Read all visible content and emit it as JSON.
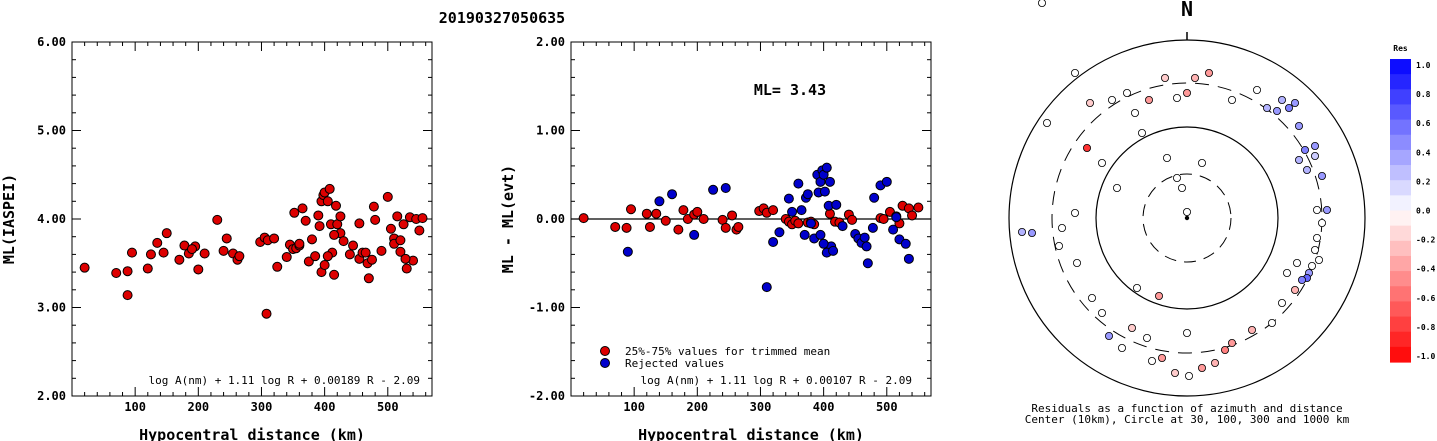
{
  "title": "20190327050635",
  "chart_data": [
    {
      "type": "scatter",
      "name": "ml_vs_distance",
      "xlabel": "Hypocentral distance (km)",
      "ylabel": "ML(IASPEI)",
      "xlim": [
        0,
        570
      ],
      "ylim": [
        2.0,
        6.0
      ],
      "xticks": [
        100,
        200,
        300,
        400,
        500
      ],
      "yticks": [
        "2.00",
        "3.00",
        "4.00",
        "5.00",
        "6.00"
      ],
      "formula": "log A(nm) + 1.11 log R + 0.00189 R - 2.09",
      "marker_color": "#dd0000",
      "points": [
        [
          20,
          3.45
        ],
        [
          70,
          3.39
        ],
        [
          88,
          3.41
        ],
        [
          88,
          3.14
        ],
        [
          95,
          3.62
        ],
        [
          120,
          3.44
        ],
        [
          125,
          3.6
        ],
        [
          135,
          3.73
        ],
        [
          150,
          3.84
        ],
        [
          145,
          3.62
        ],
        [
          170,
          3.54
        ],
        [
          178,
          3.7
        ],
        [
          185,
          3.61
        ],
        [
          195,
          3.69
        ],
        [
          200,
          3.43
        ],
        [
          190,
          3.66
        ],
        [
          210,
          3.61
        ],
        [
          230,
          3.99
        ],
        [
          240,
          3.64
        ],
        [
          245,
          3.78
        ],
        [
          255,
          3.61
        ],
        [
          262,
          3.54
        ],
        [
          265,
          3.58
        ],
        [
          298,
          3.74
        ],
        [
          305,
          3.79
        ],
        [
          310,
          3.76
        ],
        [
          320,
          3.78
        ],
        [
          325,
          3.46
        ],
        [
          308,
          2.93
        ],
        [
          340,
          3.57
        ],
        [
          345,
          3.71
        ],
        [
          350,
          3.66
        ],
        [
          355,
          3.67
        ],
        [
          360,
          3.7
        ],
        [
          365,
          4.12
        ],
        [
          370,
          3.98
        ],
        [
          375,
          3.52
        ],
        [
          380,
          3.77
        ],
        [
          385,
          3.58
        ],
        [
          390,
          4.04
        ],
        [
          392,
          3.92
        ],
        [
          395,
          4.2
        ],
        [
          398,
          4.27
        ],
        [
          400,
          4.3
        ],
        [
          405,
          4.2
        ],
        [
          408,
          4.34
        ],
        [
          410,
          3.94
        ],
        [
          412,
          3.62
        ],
        [
          395,
          3.4
        ],
        [
          400,
          3.48
        ],
        [
          405,
          3.58
        ],
        [
          415,
          3.37
        ],
        [
          418,
          4.15
        ],
        [
          420,
          3.94
        ],
        [
          425,
          3.84
        ],
        [
          430,
          3.75
        ],
        [
          440,
          3.6
        ],
        [
          445,
          3.7
        ],
        [
          455,
          3.55
        ],
        [
          460,
          3.62
        ],
        [
          465,
          3.62
        ],
        [
          468,
          3.5
        ],
        [
          470,
          3.33
        ],
        [
          478,
          4.14
        ],
        [
          480,
          3.99
        ],
        [
          490,
          3.64
        ],
        [
          500,
          4.25
        ],
        [
          505,
          3.89
        ],
        [
          510,
          3.78
        ],
        [
          515,
          4.03
        ],
        [
          520,
          3.63
        ],
        [
          525,
          3.94
        ],
        [
          530,
          3.44
        ],
        [
          535,
          4.02
        ],
        [
          540,
          3.53
        ],
        [
          545,
          4.0
        ],
        [
          550,
          3.87
        ],
        [
          555,
          4.01
        ],
        [
          510,
          3.72
        ],
        [
          520,
          3.76
        ],
        [
          528,
          3.55
        ],
        [
          352,
          4.07
        ],
        [
          360,
          3.72
        ],
        [
          475,
          3.54
        ],
        [
          415,
          3.82
        ],
        [
          425,
          4.03
        ],
        [
          455,
          3.95
        ]
      ]
    },
    {
      "type": "scatter",
      "name": "residual_vs_distance",
      "xlabel": "Hypocentral distance (km)",
      "ylabel": "ML - ML(evt)",
      "xlim": [
        0,
        570
      ],
      "ylim": [
        -2.0,
        2.0
      ],
      "xticks": [
        100,
        200,
        300,
        400,
        500
      ],
      "yticks": [
        "-2.00",
        "-1.00",
        "0.00",
        "1.00",
        "2.00"
      ],
      "annotation": "ML= 3.43",
      "formula": "log A(nm) + 1.11 log R + 0.00107 R - 2.09",
      "legend": [
        {
          "label": "25%-75% values for trimmed mean",
          "color": "#dd0000"
        },
        {
          "label": "Rejected values",
          "color": "#0000cc"
        }
      ],
      "legend_position": "bottom-left",
      "series": [
        {
          "name": "25%-75% values for trimmed mean",
          "color": "#dd0000",
          "points": [
            [
              20,
              0.01
            ],
            [
              70,
              -0.09
            ],
            [
              88,
              -0.1
            ],
            [
              95,
              0.11
            ],
            [
              120,
              0.06
            ],
            [
              125,
              -0.09
            ],
            [
              135,
              0.06
            ],
            [
              150,
              -0.02
            ],
            [
              170,
              -0.12
            ],
            [
              178,
              0.1
            ],
            [
              185,
              0.0
            ],
            [
              195,
              0.05
            ],
            [
              200,
              0.08
            ],
            [
              210,
              0.0
            ],
            [
              240,
              -0.01
            ],
            [
              245,
              -0.1
            ],
            [
              255,
              0.04
            ],
            [
              262,
              -0.12
            ],
            [
              265,
              -0.09
            ],
            [
              298,
              0.09
            ],
            [
              305,
              0.12
            ],
            [
              310,
              0.07
            ],
            [
              320,
              0.1
            ],
            [
              340,
              0.0
            ],
            [
              345,
              -0.03
            ],
            [
              350,
              -0.06
            ],
            [
              355,
              -0.02
            ],
            [
              360,
              -0.05
            ],
            [
              375,
              -0.04
            ],
            [
              380,
              -0.03
            ],
            [
              385,
              -0.06
            ],
            [
              410,
              0.06
            ],
            [
              418,
              -0.03
            ],
            [
              425,
              -0.04
            ],
            [
              440,
              0.05
            ],
            [
              445,
              -0.01
            ],
            [
              490,
              0.01
            ],
            [
              495,
              0.0
            ],
            [
              505,
              0.08
            ],
            [
              515,
              0.03
            ],
            [
              520,
              -0.05
            ],
            [
              525,
              0.15
            ],
            [
              535,
              0.12
            ],
            [
              540,
              0.04
            ],
            [
              550,
              0.13
            ]
          ]
        },
        {
          "name": "Rejected values",
          "color": "#0000cc",
          "points": [
            [
              90,
              -0.37
            ],
            [
              140,
              0.2
            ],
            [
              160,
              0.28
            ],
            [
              195,
              -0.18
            ],
            [
              225,
              0.33
            ],
            [
              245,
              0.35
            ],
            [
              310,
              -0.77
            ],
            [
              320,
              -0.26
            ],
            [
              330,
              -0.15
            ],
            [
              345,
              0.23
            ],
            [
              350,
              0.08
            ],
            [
              360,
              0.4
            ],
            [
              365,
              0.1
            ],
            [
              370,
              -0.18
            ],
            [
              372,
              0.24
            ],
            [
              375,
              0.28
            ],
            [
              380,
              -0.05
            ],
            [
              385,
              -0.22
            ],
            [
              390,
              0.5
            ],
            [
              392,
              0.3
            ],
            [
              395,
              0.42
            ],
            [
              398,
              0.55
            ],
            [
              400,
              0.5
            ],
            [
              402,
              0.31
            ],
            [
              405,
              0.58
            ],
            [
              408,
              0.15
            ],
            [
              410,
              0.42
            ],
            [
              412,
              -0.31
            ],
            [
              395,
              -0.18
            ],
            [
              400,
              -0.28
            ],
            [
              405,
              -0.38
            ],
            [
              415,
              -0.36
            ],
            [
              420,
              0.16
            ],
            [
              430,
              -0.08
            ],
            [
              450,
              -0.17
            ],
            [
              455,
              -0.22
            ],
            [
              460,
              -0.27
            ],
            [
              465,
              -0.21
            ],
            [
              468,
              -0.31
            ],
            [
              470,
              -0.5
            ],
            [
              478,
              -0.1
            ],
            [
              480,
              0.24
            ],
            [
              490,
              0.38
            ],
            [
              500,
              0.42
            ],
            [
              510,
              -0.12
            ],
            [
              515,
              0.02
            ],
            [
              520,
              -0.23
            ],
            [
              530,
              -0.28
            ],
            [
              535,
              -0.45
            ]
          ]
        }
      ]
    },
    {
      "type": "scatter",
      "name": "azimuth_distance_residuals",
      "north_label": "N",
      "caption_line1": "Residuals as a function of azimuth and distance",
      "caption_line2": "Center (10km), Circle at 30, 100, 300 and 1000 km",
      "rings_km": [
        30,
        100,
        300,
        1000
      ],
      "colorbar_title": "Res",
      "colorbar_ticks": [
        "1.0",
        "0.8",
        "0.6",
        "0.4",
        "0.2",
        "0.0",
        "-0.2",
        "-0.4",
        "-0.6",
        "-0.8",
        "-1.0"
      ],
      "stations": [
        [
          0,
          -6,
          0.0
        ],
        [
          15,
          -55,
          0.0
        ],
        [
          -5,
          -30,
          0.0
        ],
        [
          -10,
          -40,
          0.0
        ],
        [
          -145,
          -215,
          0.0
        ],
        [
          -112,
          -145,
          0.0
        ],
        [
          -97,
          -115,
          -0.2
        ],
        [
          -38,
          -118,
          -0.4
        ],
        [
          -75,
          -118,
          0.0
        ],
        [
          -52,
          -105,
          0.0
        ],
        [
          0,
          -125,
          -0.4
        ],
        [
          8,
          -140,
          -0.3
        ],
        [
          22,
          -145,
          -0.4
        ],
        [
          -22,
          -140,
          -0.2
        ],
        [
          -10,
          -120,
          0.0
        ],
        [
          45,
          -118,
          0.0
        ],
        [
          70,
          -128,
          0.0
        ],
        [
          80,
          -110,
          0.3
        ],
        [
          90,
          -107,
          0.4
        ],
        [
          95,
          -118,
          0.3
        ],
        [
          102,
          -110,
          0.5
        ],
        [
          108,
          -115,
          0.4
        ],
        [
          112,
          -92,
          0.4
        ],
        [
          118,
          -68,
          0.5
        ],
        [
          112,
          -58,
          0.3
        ],
        [
          120,
          -48,
          0.3
        ],
        [
          128,
          -72,
          0.4
        ],
        [
          128,
          -62,
          0.2
        ],
        [
          135,
          -42,
          0.4
        ],
        [
          140,
          -8,
          0.4
        ],
        [
          130,
          -8,
          0.0
        ],
        [
          135,
          5,
          0.0
        ],
        [
          130,
          20,
          0.0
        ],
        [
          128,
          32,
          0.0
        ],
        [
          132,
          42,
          0.0
        ],
        [
          125,
          48,
          0.0
        ],
        [
          122,
          55,
          0.4
        ],
        [
          120,
          60,
          0.6
        ],
        [
          115,
          62,
          0.5
        ],
        [
          110,
          45,
          0.0
        ],
        [
          100,
          55,
          0.0
        ],
        [
          108,
          72,
          -0.3
        ],
        [
          95,
          85,
          0.0
        ],
        [
          85,
          105,
          0.0
        ],
        [
          65,
          112,
          -0.3
        ],
        [
          45,
          125,
          -0.4
        ],
        [
          38,
          132,
          -0.5
        ],
        [
          28,
          145,
          -0.3
        ],
        [
          15,
          150,
          -0.4
        ],
        [
          2,
          158,
          0.0
        ],
        [
          -12,
          155,
          -0.2
        ],
        [
          -25,
          140,
          -0.4
        ],
        [
          -35,
          143,
          0.0
        ],
        [
          -40,
          120,
          0.0
        ],
        [
          -55,
          110,
          -0.2
        ],
        [
          -65,
          130,
          0.0
        ],
        [
          -78,
          118,
          0.4
        ],
        [
          -85,
          95,
          0.0
        ],
        [
          -112,
          -5,
          0.0
        ],
        [
          -125,
          10,
          0.0
        ],
        [
          -128,
          28,
          0.0
        ],
        [
          -110,
          45,
          0.0
        ],
        [
          -95,
          80,
          0.0
        ],
        [
          -50,
          70,
          0.0
        ],
        [
          -28,
          78,
          -0.4
        ],
        [
          0,
          115,
          0.0
        ],
        [
          -155,
          15,
          0.4
        ],
        [
          -165,
          14,
          0.3
        ],
        [
          -140,
          -95,
          0.0
        ],
        [
          -100,
          -70,
          -0.8
        ],
        [
          -85,
          -55,
          0.0
        ],
        [
          -70,
          -30,
          0.0
        ],
        [
          -60,
          -125,
          0.0
        ],
        [
          -45,
          -85,
          0.0
        ],
        [
          -20,
          -60,
          0.0
        ]
      ]
    }
  ]
}
